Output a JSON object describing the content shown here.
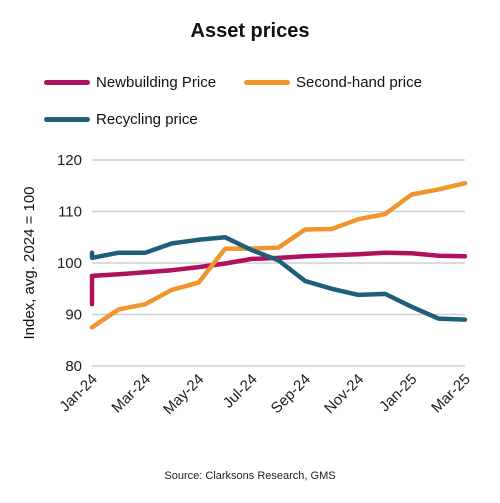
{
  "chart_data": {
    "type": "line",
    "title": "Asset prices",
    "ylabel": "Index, avg. 2024 = 100",
    "xlabel": "",
    "source": "Source: Clarksons Research, GMS",
    "ylim": [
      80,
      120
    ],
    "yticks": [
      80,
      90,
      100,
      110,
      120
    ],
    "grid": true,
    "legend_position": "top",
    "x": [
      "Jan-24",
      "Feb-24",
      "Mar-24",
      "Apr-24",
      "May-24",
      "Jun-24",
      "Jul-24",
      "Aug-24",
      "Sep-24",
      "Oct-24",
      "Nov-24",
      "Dec-24",
      "Jan-25",
      "Feb-25",
      "Mar-25"
    ],
    "xtick_labels": [
      "Jan-24",
      "Mar-24",
      "May-24",
      "Jul-24",
      "Sep-24",
      "Nov-24",
      "Jan-25",
      "Mar-25"
    ],
    "series": [
      {
        "name": "Newbuilding Price",
        "color": "#b0105c",
        "points": [
          {
            "x": "Jan-24",
            "y": 92.0
          },
          {
            "x": "Jan-24",
            "y": 97.5
          },
          {
            "x": "Feb-24",
            "y": 97.8
          },
          {
            "x": "Mar-24",
            "y": 98.2
          },
          {
            "x": "Apr-24",
            "y": 98.6
          },
          {
            "x": "May-24",
            "y": 99.2
          },
          {
            "x": "Jun-24",
            "y": 99.9
          },
          {
            "x": "Jul-24",
            "y": 100.8
          },
          {
            "x": "Aug-24",
            "y": 101.0
          },
          {
            "x": "Sep-24",
            "y": 101.3
          },
          {
            "x": "Oct-24",
            "y": 101.5
          },
          {
            "x": "Nov-24",
            "y": 101.7
          },
          {
            "x": "Dec-24",
            "y": 102.0
          },
          {
            "x": "Jan-25",
            "y": 101.9
          },
          {
            "x": "Feb-25",
            "y": 101.4
          },
          {
            "x": "Mar-25",
            "y": 101.3
          }
        ]
      },
      {
        "name": "Second-hand price",
        "color": "#f0962c",
        "points": [
          {
            "x": "Jan-24",
            "y": 87.5
          },
          {
            "x": "Feb-24",
            "y": 91.0
          },
          {
            "x": "Mar-24",
            "y": 92.0
          },
          {
            "x": "Apr-24",
            "y": 94.8
          },
          {
            "x": "May-24",
            "y": 96.2
          },
          {
            "x": "Jun-24",
            "y": 102.8
          },
          {
            "x": "Jul-24",
            "y": 102.8
          },
          {
            "x": "Aug-24",
            "y": 103.0
          },
          {
            "x": "Sep-24",
            "y": 106.5
          },
          {
            "x": "Oct-24",
            "y": 106.6
          },
          {
            "x": "Nov-24",
            "y": 108.5
          },
          {
            "x": "Dec-24",
            "y": 109.5
          },
          {
            "x": "Jan-25",
            "y": 113.3
          },
          {
            "x": "Feb-25",
            "y": 114.3
          },
          {
            "x": "Mar-25",
            "y": 115.5
          }
        ]
      },
      {
        "name": "Recycling price",
        "color": "#1f5f7a",
        "points": [
          {
            "x": "Jan-24",
            "y": 102.0
          },
          {
            "x": "Jan-24",
            "y": 101.0
          },
          {
            "x": "Feb-24",
            "y": 102.0
          },
          {
            "x": "Mar-24",
            "y": 102.0
          },
          {
            "x": "Apr-24",
            "y": 103.8
          },
          {
            "x": "May-24",
            "y": 104.5
          },
          {
            "x": "Jun-24",
            "y": 105.0
          },
          {
            "x": "Jul-24",
            "y": 102.5
          },
          {
            "x": "Aug-24",
            "y": 100.5
          },
          {
            "x": "Sep-24",
            "y": 96.5
          },
          {
            "x": "Oct-24",
            "y": 95.0
          },
          {
            "x": "Nov-24",
            "y": 93.8
          },
          {
            "x": "Dec-24",
            "y": 94.0
          },
          {
            "x": "Jan-25",
            "y": 91.5
          },
          {
            "x": "Feb-25",
            "y": 89.2
          },
          {
            "x": "Mar-25",
            "y": 89.0
          }
        ]
      }
    ]
  }
}
